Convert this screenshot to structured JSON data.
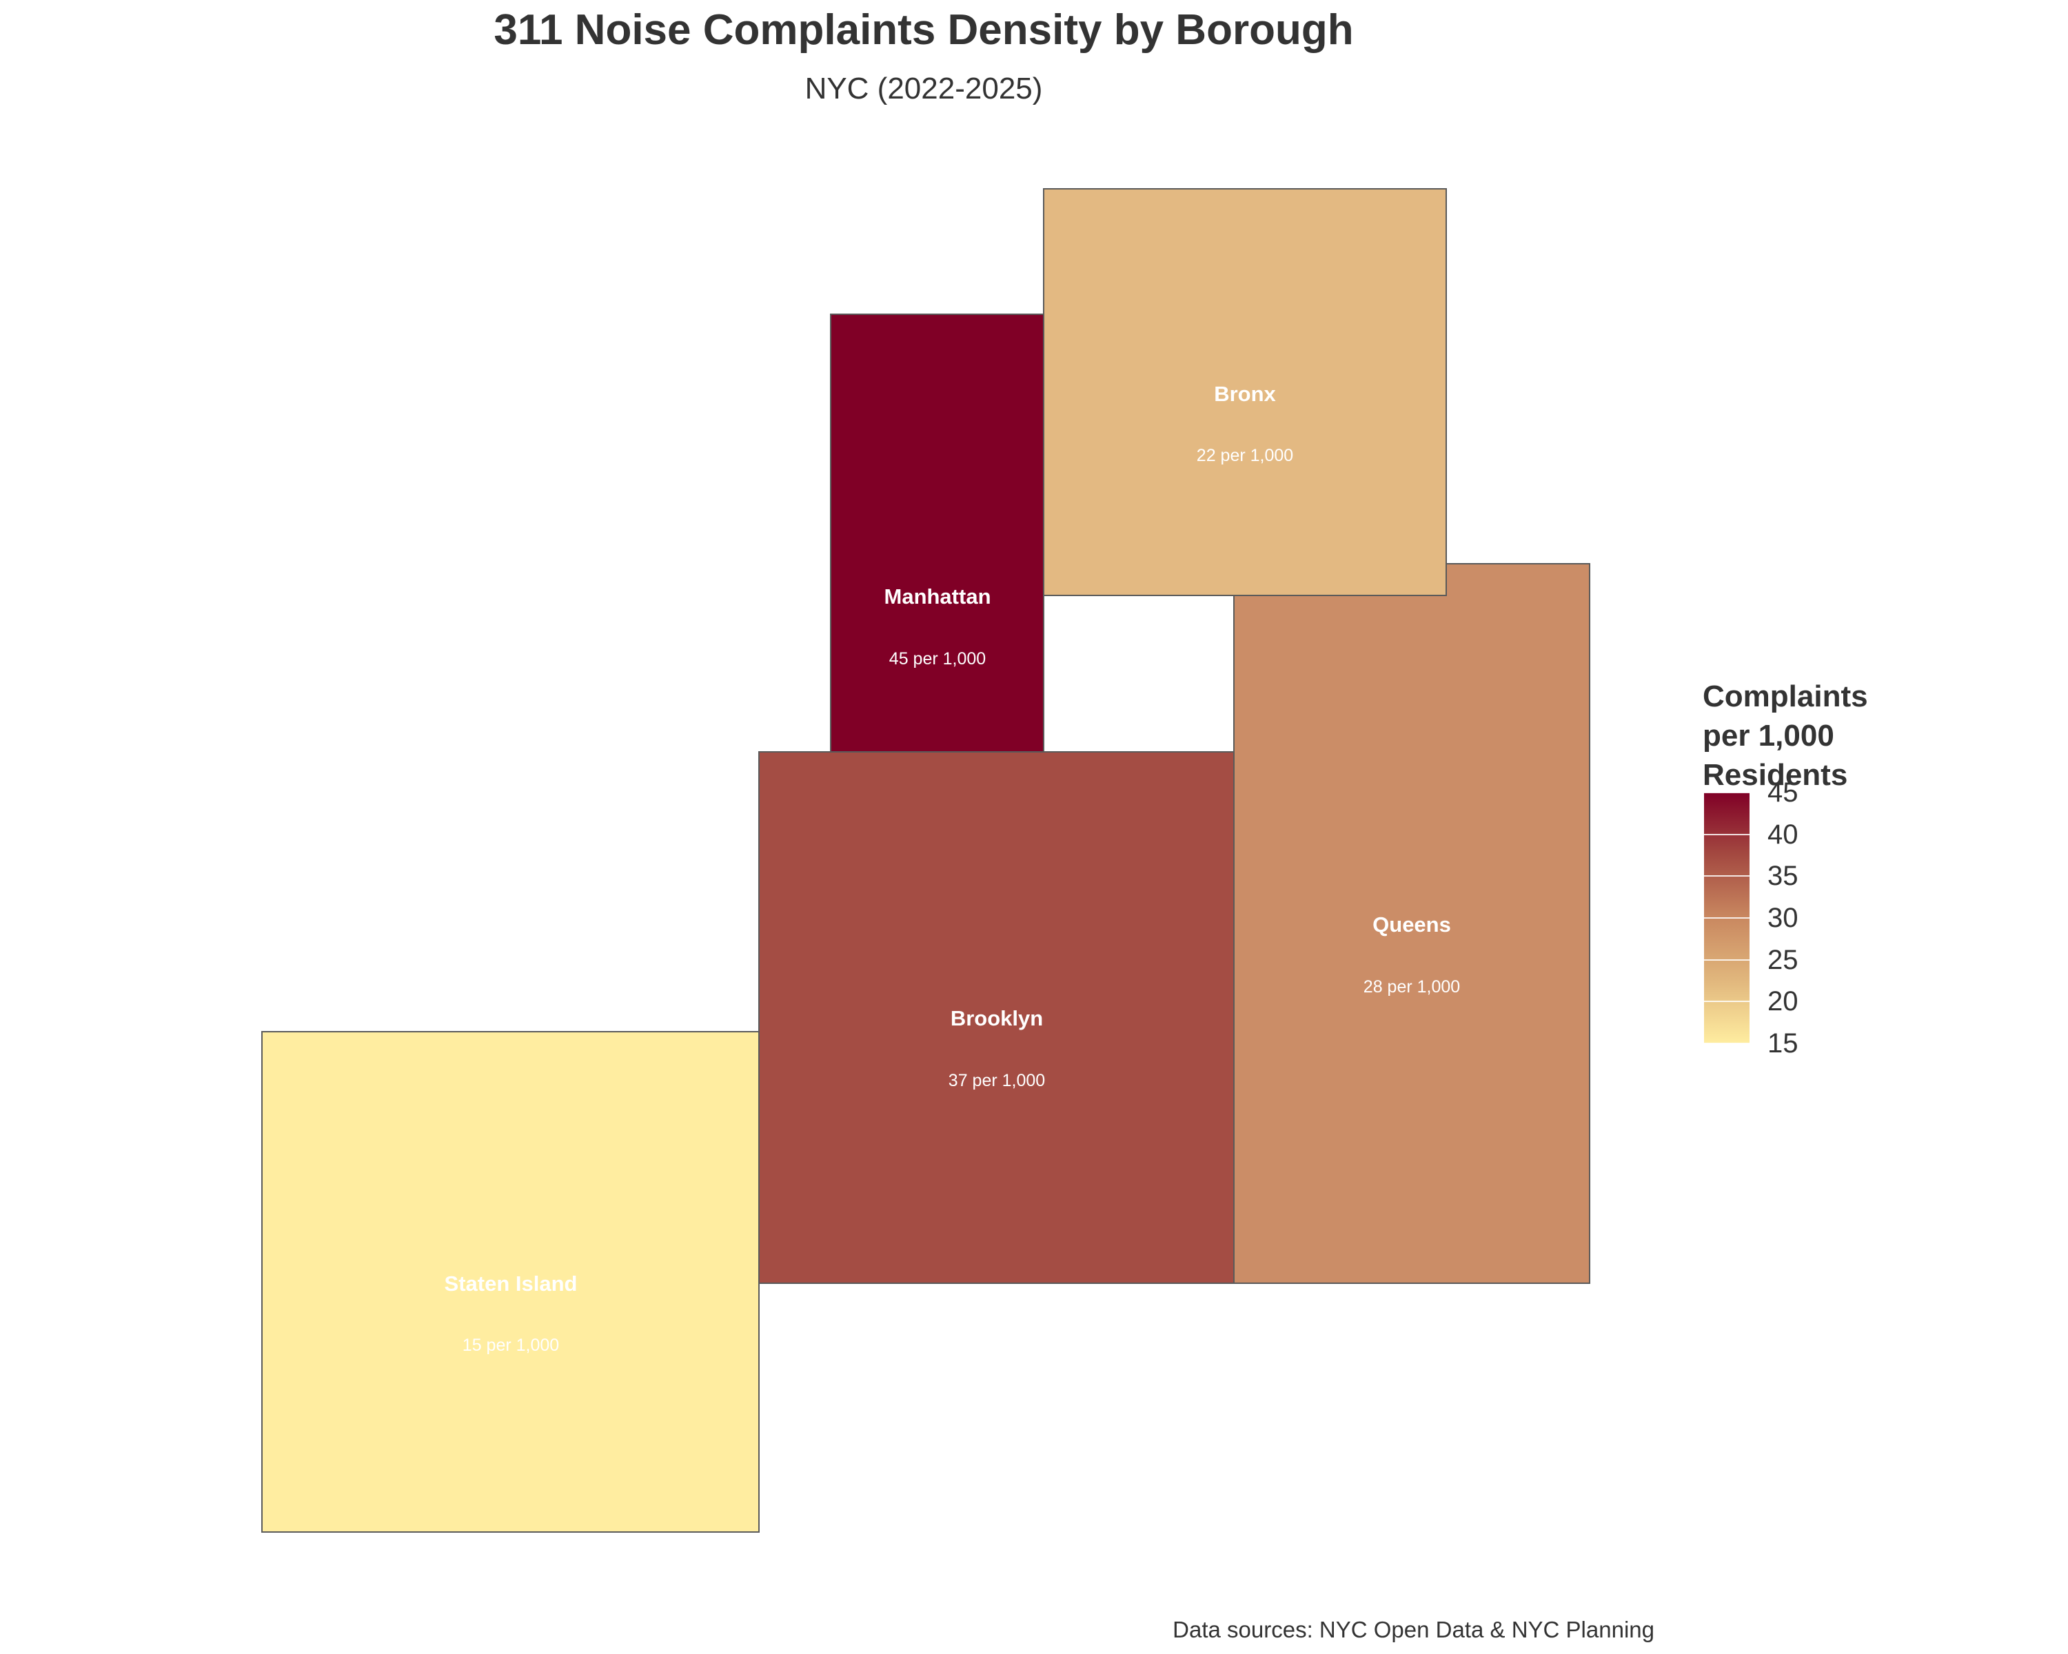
{
  "title": "311 Noise Complaints Density by Borough",
  "subtitle": "NYC (2022-2025)",
  "caption": "Data sources: NYC Open Data & NYC Planning",
  "legend": {
    "title": "Complaints\nper 1,000\nResidents",
    "min": 15,
    "max": 45,
    "ticks": [
      "45",
      "40",
      "35",
      "30",
      "25",
      "20",
      "15"
    ],
    "colors": [
      "#ffeda0",
      "#e1b77d",
      "#c98860",
      "#a44a41",
      "#800026"
    ]
  },
  "chart_data": {
    "type": "choropleth",
    "title": "311 Noise Complaints Density by Borough",
    "subtitle": "NYC (2022-2025)",
    "value_label": "Complaints per 1,000 Residents",
    "regions": [
      {
        "name": "Manhattan",
        "value": 45,
        "label": "45 per 1,000",
        "color": "#800026"
      },
      {
        "name": "Bronx",
        "value": 22,
        "label": "22 per 1,000",
        "color": "#e3b982"
      },
      {
        "name": "Queens",
        "value": 28,
        "label": "28 per 1,000",
        "color": "#cb8d67"
      },
      {
        "name": "Brooklyn",
        "value": 37,
        "label": "37 per 1,000",
        "color": "#a44d44"
      },
      {
        "name": "Staten Island",
        "value": 15,
        "label": "15 per 1,000",
        "color": "#ffeda0"
      }
    ]
  }
}
